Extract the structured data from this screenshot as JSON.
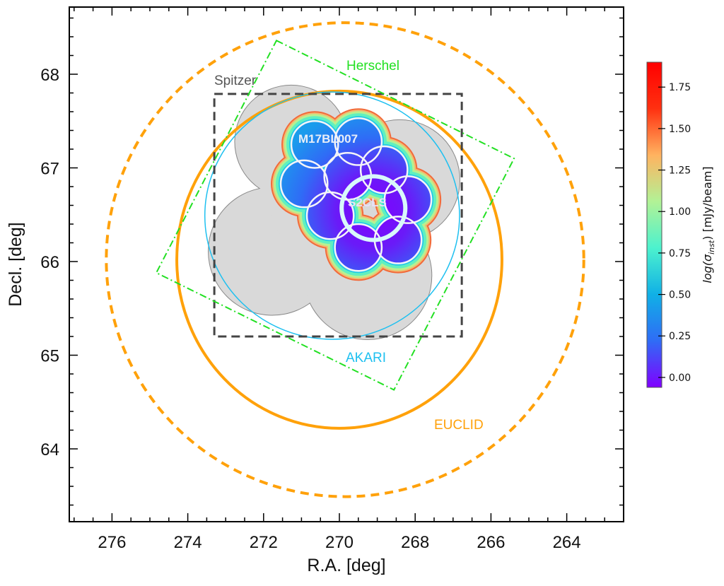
{
  "chart_data": {
    "type": "sky-coverage-map",
    "xlabel": "R.A. [deg]",
    "ylabel": "Decl. [deg]",
    "xlim": [
      277.2,
      262.6
    ],
    "ylim": [
      63.25,
      68.75
    ],
    "xticks": [
      "276",
      "274",
      "272",
      "270",
      "268",
      "266",
      "264"
    ],
    "xtick_values": [
      276,
      274,
      272,
      270,
      268,
      266,
      264
    ],
    "yticks": [
      "64",
      "65",
      "66",
      "67",
      "68"
    ],
    "ytick_values": [
      64,
      65,
      66,
      67,
      68
    ],
    "surveys": {
      "euclid_outer": {
        "ra": 269.85,
        "dec": 66.02,
        "ra_halfwidth": 6.3,
        "dec_halfwidth": 2.53,
        "color": "#ffa10a",
        "style": "dashed"
      },
      "euclid": {
        "label": "EUCLID",
        "ra": 270.0,
        "dec": 66.02,
        "ra_halfwidth": 4.29,
        "dec_halfwidth": 1.8,
        "color": "#ffa10a"
      },
      "akari": {
        "label": "AKARI",
        "ra": 270.19,
        "dec": 66.49,
        "ra_halfwidth": 3.36,
        "dec_halfwidth": 1.32,
        "color": "#1ec0f0"
      },
      "spitzer": {
        "label": "Spitzer",
        "ra_range": [
          273.3,
          266.77
        ],
        "dec_range": [
          65.2,
          67.79
        ],
        "color": "#444444",
        "fill": "#d9d9d9"
      },
      "herschel": {
        "label": "Herschel",
        "corners": [
          [
            271.66,
            68.36
          ],
          [
            265.39,
            67.1
          ],
          [
            268.56,
            64.63
          ],
          [
            274.83,
            65.88
          ]
        ],
        "color": "#22e022"
      },
      "spitzer_coverage": [
        {
          "ra": 271.27,
          "dec": 67.28,
          "r": 0.6
        },
        {
          "ra": 268.41,
          "dec": 66.87,
          "r": 0.64
        },
        {
          "ra": 271.77,
          "dec": 66.11,
          "r": 0.68
        },
        {
          "ra": 269.25,
          "dec": 65.85,
          "r": 0.68
        },
        {
          "ra": 270.19,
          "dec": 66.68,
          "r": 0.68
        }
      ],
      "m17bl007": {
        "label": "M17BL007",
        "pointing_radius": 0.25,
        "pointings": [
          [
            270.65,
            67.25
          ],
          [
            269.5,
            67.28
          ],
          [
            270.93,
            66.83
          ],
          [
            269.78,
            66.91
          ],
          [
            268.82,
            66.98
          ],
          [
            270.24,
            66.49
          ],
          [
            268.19,
            66.66
          ],
          [
            269.5,
            66.15
          ],
          [
            268.45,
            66.23
          ]
        ]
      },
      "s2cls": {
        "label": "S2CLS",
        "ra": 269.1,
        "dec": 66.57,
        "r": 0.34,
        "color": "#d8f8fa"
      }
    },
    "colorbar": {
      "label_prefix": "log(σ",
      "label_sub": "inst",
      "label_suffix": ") [mJy/beam]",
      "range": [
        -0.06,
        1.9
      ],
      "ticks": [
        "0.00",
        "0.25",
        "0.50",
        "0.75",
        "1.00",
        "1.25",
        "1.50",
        "1.75"
      ],
      "tick_values": [
        0,
        0.25,
        0.5,
        0.75,
        1.0,
        1.25,
        1.5,
        1.75
      ],
      "colormap": [
        "#8000ff",
        "#2f6cf6",
        "#10b0e6",
        "#4cf2ce",
        "#b2f296",
        "#ffb360",
        "#ff3010",
        "#ff0000"
      ]
    }
  }
}
